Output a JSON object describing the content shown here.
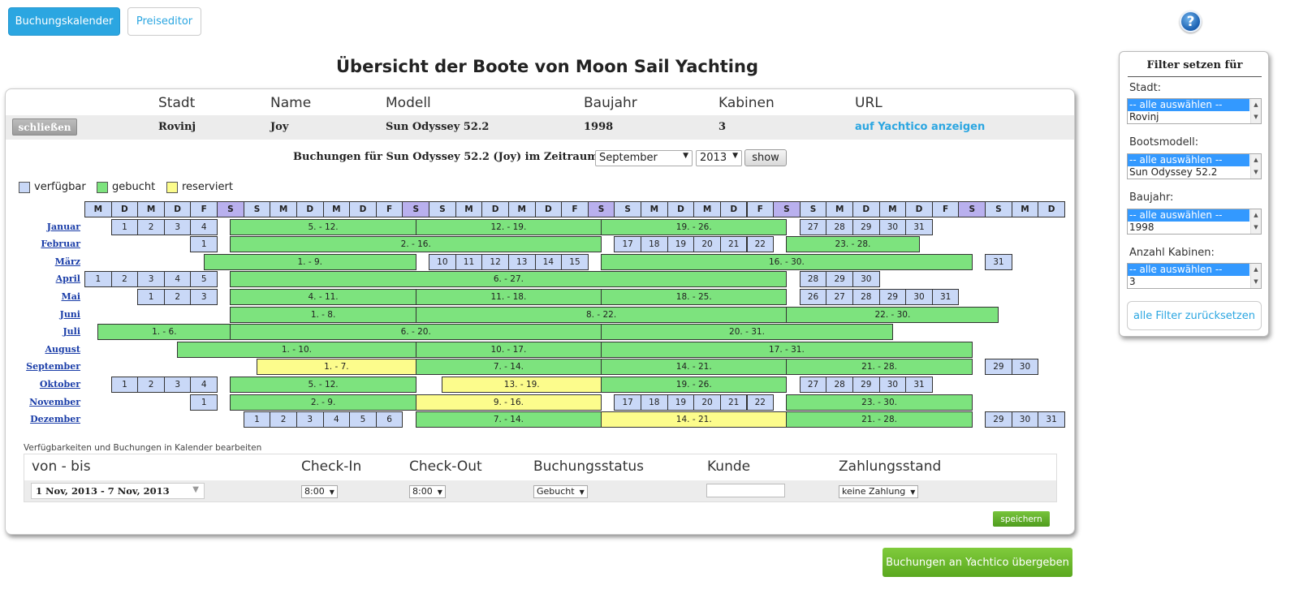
{
  "topbar": {
    "booking_calendar": "Buchungskalender",
    "price_editor": "Preiseditor",
    "help": "?"
  },
  "title": "Übersicht der Boote von Moon Sail Yachting",
  "boat_table": {
    "headers": [
      "Stadt",
      "Name",
      "Modell",
      "Baujahr",
      "Kabinen",
      "URL"
    ],
    "close_label": "schließen",
    "row": {
      "stadt": "Rovinj",
      "name": "Joy",
      "modell": "Sun Odyssey 52.2",
      "baujahr": "1998",
      "kabinen": "3",
      "url": "auf Yachtico anzeigen"
    }
  },
  "period": {
    "label": "Buchungen für Sun Odyssey 52.2 (Joy) im Zeitraum:",
    "month": "September",
    "year": "2013",
    "show": "show"
  },
  "legend": {
    "free": "verfügbar",
    "booked": "gebucht",
    "reserved": "reserviert",
    "free_color": "#c9d8f7",
    "booked_color": "#7de37e",
    "reserved_color": "#fcfc8c"
  },
  "day_headers": [
    "M",
    "D",
    "M",
    "D",
    "F",
    "S",
    "S",
    "M",
    "D",
    "M",
    "D",
    "F",
    "S",
    "S",
    "M",
    "D",
    "M",
    "D",
    "F",
    "S",
    "S",
    "M",
    "D",
    "M",
    "D",
    "F",
    "S",
    "S",
    "M",
    "D",
    "M",
    "D",
    "F",
    "S",
    "S",
    "M",
    "D"
  ],
  "months": [
    {
      "name": "Januar",
      "start": 1,
      "segs": [
        {
          "t": "f",
          "s": 1,
          "e": 1,
          "l": "1"
        },
        {
          "t": "f",
          "s": 2,
          "e": 2,
          "l": "2"
        },
        {
          "t": "f",
          "s": 3,
          "e": 3,
          "l": "3"
        },
        {
          "t": "f",
          "s": 4,
          "e": 4,
          "l": "4"
        },
        {
          "t": "b",
          "s": 5,
          "e": 12,
          "l": "5. - 12."
        },
        {
          "t": "b",
          "s": 12,
          "e": 19,
          "l": "12. - 19."
        },
        {
          "t": "b",
          "s": 19,
          "e": 26,
          "l": "19. - 26."
        },
        {
          "t": "f",
          "s": 27,
          "e": 27,
          "l": "27"
        },
        {
          "t": "f",
          "s": 28,
          "e": 28,
          "l": "28"
        },
        {
          "t": "f",
          "s": 29,
          "e": 29,
          "l": "29"
        },
        {
          "t": "f",
          "s": 30,
          "e": 30,
          "l": "30"
        },
        {
          "t": "f",
          "s": 31,
          "e": 31,
          "l": "31"
        }
      ]
    },
    {
      "name": "Februar",
      "start": 4,
      "segs": [
        {
          "t": "f",
          "s": 1,
          "e": 1,
          "l": "1"
        },
        {
          "t": "b",
          "s": 2,
          "e": 16,
          "l": "2. - 16."
        },
        {
          "t": "f",
          "s": 17,
          "e": 17,
          "l": "17"
        },
        {
          "t": "f",
          "s": 18,
          "e": 18,
          "l": "18"
        },
        {
          "t": "f",
          "s": 19,
          "e": 19,
          "l": "19"
        },
        {
          "t": "f",
          "s": 20,
          "e": 20,
          "l": "20"
        },
        {
          "t": "f",
          "s": 21,
          "e": 21,
          "l": "21"
        },
        {
          "t": "f",
          "s": 22,
          "e": 22,
          "l": "22"
        },
        {
          "t": "b",
          "s": 23,
          "e": 28,
          "l": "23. - 28."
        }
      ]
    },
    {
      "name": "März",
      "start": 4,
      "segs": [
        {
          "t": "b",
          "s": 1,
          "e": 9,
          "l": "1. - 9."
        },
        {
          "t": "f",
          "s": 10,
          "e": 10,
          "l": "10"
        },
        {
          "t": "f",
          "s": 11,
          "e": 11,
          "l": "11"
        },
        {
          "t": "f",
          "s": 12,
          "e": 12,
          "l": "12"
        },
        {
          "t": "f",
          "s": 13,
          "e": 13,
          "l": "13"
        },
        {
          "t": "f",
          "s": 14,
          "e": 14,
          "l": "14"
        },
        {
          "t": "f",
          "s": 15,
          "e": 15,
          "l": "15"
        },
        {
          "t": "b",
          "s": 16,
          "e": 30,
          "l": "16. - 30."
        },
        {
          "t": "f",
          "s": 31,
          "e": 31,
          "l": "31"
        }
      ]
    },
    {
      "name": "April",
      "start": 0,
      "segs": [
        {
          "t": "f",
          "s": 1,
          "e": 1,
          "l": "1"
        },
        {
          "t": "f",
          "s": 2,
          "e": 2,
          "l": "2"
        },
        {
          "t": "f",
          "s": 3,
          "e": 3,
          "l": "3"
        },
        {
          "t": "f",
          "s": 4,
          "e": 4,
          "l": "4"
        },
        {
          "t": "f",
          "s": 5,
          "e": 5,
          "l": "5"
        },
        {
          "t": "b",
          "s": 6,
          "e": 27,
          "l": "6. - 27."
        },
        {
          "t": "f",
          "s": 28,
          "e": 28,
          "l": "28"
        },
        {
          "t": "f",
          "s": 29,
          "e": 29,
          "l": "29"
        },
        {
          "t": "f",
          "s": 30,
          "e": 30,
          "l": "30"
        }
      ]
    },
    {
      "name": "Mai",
      "start": 2,
      "segs": [
        {
          "t": "f",
          "s": 1,
          "e": 1,
          "l": "1"
        },
        {
          "t": "f",
          "s": 2,
          "e": 2,
          "l": "2"
        },
        {
          "t": "f",
          "s": 3,
          "e": 3,
          "l": "3"
        },
        {
          "t": "b",
          "s": 4,
          "e": 11,
          "l": "4. - 11."
        },
        {
          "t": "b",
          "s": 11,
          "e": 18,
          "l": "11. - 18."
        },
        {
          "t": "b",
          "s": 18,
          "e": 25,
          "l": "18. - 25."
        },
        {
          "t": "f",
          "s": 26,
          "e": 26,
          "l": "26"
        },
        {
          "t": "f",
          "s": 27,
          "e": 27,
          "l": "27"
        },
        {
          "t": "f",
          "s": 28,
          "e": 28,
          "l": "28"
        },
        {
          "t": "f",
          "s": 29,
          "e": 29,
          "l": "29"
        },
        {
          "t": "f",
          "s": 30,
          "e": 30,
          "l": "30"
        },
        {
          "t": "f",
          "s": 31,
          "e": 31,
          "l": "31"
        }
      ]
    },
    {
      "name": "Juni",
      "start": 5,
      "segs": [
        {
          "t": "b",
          "s": 1,
          "e": 8,
          "l": "1. - 8."
        },
        {
          "t": "b",
          "s": 8,
          "e": 22,
          "l": "8. - 22."
        },
        {
          "t": "b",
          "s": 22,
          "e": 30,
          "l": "22. - 30."
        }
      ]
    },
    {
      "name": "Juli",
      "start": 0,
      "segs": [
        {
          "t": "b",
          "s": 1,
          "e": 6,
          "l": "1. - 6."
        },
        {
          "t": "b",
          "s": 6,
          "e": 20,
          "l": "6. - 20."
        },
        {
          "t": "b",
          "s": 20,
          "e": 31,
          "l": "20. - 31."
        }
      ]
    },
    {
      "name": "August",
      "start": 3,
      "segs": [
        {
          "t": "b",
          "s": 1,
          "e": 10,
          "l": "1. - 10."
        },
        {
          "t": "b",
          "s": 10,
          "e": 17,
          "l": "10. - 17."
        },
        {
          "t": "b",
          "s": 17,
          "e": 31,
          "l": "17. - 31."
        }
      ]
    },
    {
      "name": "September",
      "start": 6,
      "segs": [
        {
          "t": "r",
          "s": 1,
          "e": 7,
          "l": "1. - 7."
        },
        {
          "t": "b",
          "s": 7,
          "e": 14,
          "l": "7. - 14."
        },
        {
          "t": "b",
          "s": 14,
          "e": 21,
          "l": "14. - 21."
        },
        {
          "t": "b",
          "s": 21,
          "e": 28,
          "l": "21. - 28."
        },
        {
          "t": "f",
          "s": 29,
          "e": 29,
          "l": "29"
        },
        {
          "t": "f",
          "s": 30,
          "e": 30,
          "l": "30"
        }
      ]
    },
    {
      "name": "Oktober",
      "start": 1,
      "segs": [
        {
          "t": "f",
          "s": 1,
          "e": 1,
          "l": "1"
        },
        {
          "t": "f",
          "s": 2,
          "e": 2,
          "l": "2"
        },
        {
          "t": "f",
          "s": 3,
          "e": 3,
          "l": "3"
        },
        {
          "t": "f",
          "s": 4,
          "e": 4,
          "l": "4"
        },
        {
          "t": "b",
          "s": 5,
          "e": 12,
          "l": "5. - 12."
        },
        {
          "t": "r",
          "s": 13,
          "e": 19,
          "l": "13. - 19."
        },
        {
          "t": "b",
          "s": 19,
          "e": 26,
          "l": "19. - 26."
        },
        {
          "t": "f",
          "s": 27,
          "e": 27,
          "l": "27"
        },
        {
          "t": "f",
          "s": 28,
          "e": 28,
          "l": "28"
        },
        {
          "t": "f",
          "s": 29,
          "e": 29,
          "l": "29"
        },
        {
          "t": "f",
          "s": 30,
          "e": 30,
          "l": "30"
        },
        {
          "t": "f",
          "s": 31,
          "e": 31,
          "l": "31"
        }
      ]
    },
    {
      "name": "November",
      "start": 4,
      "segs": [
        {
          "t": "f",
          "s": 1,
          "e": 1,
          "l": "1"
        },
        {
          "t": "b",
          "s": 2,
          "e": 9,
          "l": "2. - 9."
        },
        {
          "t": "r",
          "s": 9,
          "e": 16,
          "l": "9. - 16."
        },
        {
          "t": "f",
          "s": 17,
          "e": 17,
          "l": "17"
        },
        {
          "t": "f",
          "s": 18,
          "e": 18,
          "l": "18"
        },
        {
          "t": "f",
          "s": 19,
          "e": 19,
          "l": "19"
        },
        {
          "t": "f",
          "s": 20,
          "e": 20,
          "l": "20"
        },
        {
          "t": "f",
          "s": 21,
          "e": 21,
          "l": "21"
        },
        {
          "t": "f",
          "s": 22,
          "e": 22,
          "l": "22"
        },
        {
          "t": "b",
          "s": 23,
          "e": 30,
          "l": "23. - 30."
        }
      ]
    },
    {
      "name": "Dezember",
      "start": 6,
      "segs": [
        {
          "t": "f",
          "s": 1,
          "e": 1,
          "l": "1"
        },
        {
          "t": "f",
          "s": 2,
          "e": 2,
          "l": "2"
        },
        {
          "t": "f",
          "s": 3,
          "e": 3,
          "l": "3"
        },
        {
          "t": "f",
          "s": 4,
          "e": 4,
          "l": "4"
        },
        {
          "t": "f",
          "s": 5,
          "e": 5,
          "l": "5"
        },
        {
          "t": "f",
          "s": 6,
          "e": 6,
          "l": "6"
        },
        {
          "t": "b",
          "s": 7,
          "e": 14,
          "l": "7. - 14."
        },
        {
          "t": "r",
          "s": 14,
          "e": 21,
          "l": "14. - 21."
        },
        {
          "t": "b",
          "s": 21,
          "e": 28,
          "l": "21. - 28."
        },
        {
          "t": "f",
          "s": 29,
          "e": 29,
          "l": "29"
        },
        {
          "t": "f",
          "s": 30,
          "e": 30,
          "l": "30"
        },
        {
          "t": "f",
          "s": 31,
          "e": 31,
          "l": "31"
        }
      ]
    }
  ],
  "editor": {
    "caption": "Verfügbarkeiten und Buchungen in Kalender bearbeiten",
    "headers": [
      "von - bis",
      "Check-In",
      "Check-Out",
      "Buchungsstatus",
      "Kunde",
      "Zahlungsstand"
    ],
    "date_range": "1 Nov, 2013 - 7 Nov, 2013",
    "checkin": "8:00",
    "checkout": "8:00",
    "status": "Gebucht",
    "customer": "",
    "payment": "keine Zahlung",
    "save": "speichern"
  },
  "transfer_button": "Buchungen an Yachtico übergeben",
  "filter": {
    "title": "Filter setzen für",
    "select_all": "-- alle auswählen --",
    "reset": "alle Filter zurücksetzen",
    "groups": [
      {
        "label": "Stadt:",
        "value": "Rovinj"
      },
      {
        "label": "Bootsmodell:",
        "value": "Sun Odyssey 52.2"
      },
      {
        "label": "Baujahr:",
        "value": "1998"
      },
      {
        "label": "Anzahl Kabinen:",
        "value": "3"
      }
    ]
  }
}
